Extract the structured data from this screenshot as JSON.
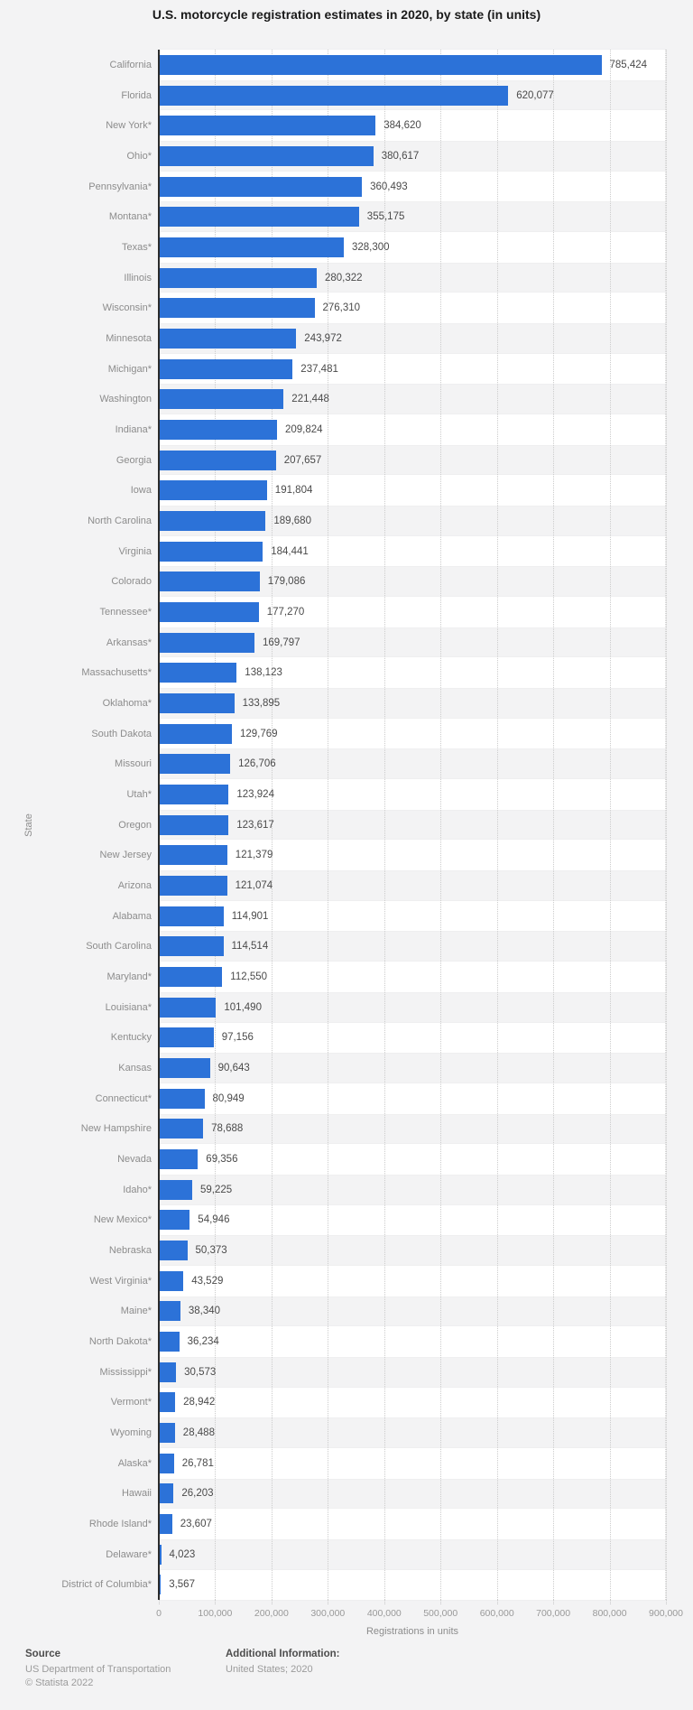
{
  "title": "U.S. motorcycle registration estimates in 2020, by state (in units)",
  "chart_data": {
    "type": "bar",
    "orientation": "horizontal",
    "title": "U.S. motorcycle registration estimates in 2020, by state (in units)",
    "xlabel": "Registrations in units",
    "ylabel": "State",
    "xlim": [
      0,
      900000
    ],
    "grid": true,
    "legend": "none",
    "bar_color": "#2c72d8",
    "x_ticks": [
      "0",
      "100,000",
      "200,000",
      "300,000",
      "400,000",
      "500,000",
      "600,000",
      "700,000",
      "800,000",
      "900,000"
    ],
    "categories": [
      "California",
      "Florida",
      "New York*",
      "Ohio*",
      "Pennsylvania*",
      "Montana*",
      "Texas*",
      "Illinois",
      "Wisconsin*",
      "Minnesota",
      "Michigan*",
      "Washington",
      "Indiana*",
      "Georgia",
      "Iowa",
      "North Carolina",
      "Virginia",
      "Colorado",
      "Tennessee*",
      "Arkansas*",
      "Massachusetts*",
      "Oklahoma*",
      "South Dakota",
      "Missouri",
      "Utah*",
      "Oregon",
      "New Jersey",
      "Arizona",
      "Alabama",
      "South Carolina",
      "Maryland*",
      "Louisiana*",
      "Kentucky",
      "Kansas",
      "Connecticut*",
      "New Hampshire",
      "Nevada",
      "Idaho*",
      "New Mexico*",
      "Nebraska",
      "West Virginia*",
      "Maine*",
      "North Dakota*",
      "Mississippi*",
      "Vermont*",
      "Wyoming",
      "Alaska*",
      "Hawaii",
      "Rhode Island*",
      "Delaware*",
      "District of Columbia*"
    ],
    "values": [
      785424,
      620077,
      384620,
      380617,
      360493,
      355175,
      328300,
      280322,
      276310,
      243972,
      237481,
      221448,
      209824,
      207657,
      191804,
      189680,
      184441,
      179086,
      177270,
      169797,
      138123,
      133895,
      129769,
      126706,
      123924,
      123617,
      121379,
      121074,
      114901,
      114514,
      112550,
      101490,
      97156,
      90643,
      80949,
      78688,
      69356,
      59225,
      54946,
      50373,
      43529,
      38340,
      36234,
      30573,
      28942,
      28488,
      26781,
      26203,
      23607,
      4023,
      3567
    ],
    "value_labels": [
      "785,424",
      "620,077",
      "384,620",
      "380,617",
      "360,493",
      "355,175",
      "328,300",
      "280,322",
      "276,310",
      "243,972",
      "237,481",
      "221,448",
      "209,824",
      "207,657",
      "191,804",
      "189,680",
      "184,441",
      "179,086",
      "177,270",
      "169,797",
      "138,123",
      "133,895",
      "129,769",
      "126,706",
      "123,924",
      "123,617",
      "121,379",
      "121,074",
      "114,901",
      "114,514",
      "112,550",
      "101,490",
      "97,156",
      "90,643",
      "80,949",
      "78,688",
      "69,356",
      "59,225",
      "54,946",
      "50,373",
      "43,529",
      "38,340",
      "36,234",
      "30,573",
      "28,942",
      "28,488",
      "26,781",
      "26,203",
      "23,607",
      "4,023",
      "3,567"
    ]
  },
  "footer": {
    "source_heading": "Source",
    "source_lines": [
      "US Department of Transportation",
      "© Statista 2022"
    ],
    "additional_heading": "Additional Information:",
    "additional_lines": [
      "United States; 2020"
    ]
  }
}
